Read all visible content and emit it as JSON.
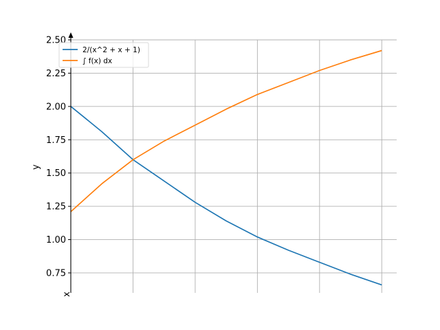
{
  "chart_data": {
    "type": "line",
    "title": "",
    "xlabel": "x",
    "ylabel": "y",
    "xlim": [
      0,
      2.62
    ],
    "ylim": [
      0.6,
      2.5
    ],
    "x_grid": [
      0.5,
      1.0,
      1.5,
      2.0,
      2.5
    ],
    "y_ticks": [
      0.75,
      1.0,
      1.25,
      1.5,
      1.75,
      2.0,
      2.25,
      2.5
    ],
    "y_tick_labels": [
      "0.75",
      "1.00",
      "1.25",
      "1.50",
      "1.75",
      "2.00",
      "2.25",
      "2.50"
    ],
    "grid": true,
    "legend_position": "top-left",
    "series": [
      {
        "name": "2/(x^2 + x + 1)",
        "color": "#1f77b4",
        "x": [
          0,
          0.25,
          0.5,
          0.75,
          1.0,
          1.25,
          1.5,
          1.75,
          2.0,
          2.25,
          2.5
        ],
        "y": [
          2.0,
          1.81,
          1.6,
          1.44,
          1.28,
          1.14,
          1.02,
          0.92,
          0.83,
          0.74,
          0.66
        ]
      },
      {
        "name": "∫ f(x) dx",
        "color": "#ff7f0e",
        "x": [
          0,
          0.25,
          0.5,
          0.75,
          1.0,
          1.25,
          1.5,
          1.75,
          2.0,
          2.25,
          2.5
        ],
        "y": [
          1.21,
          1.42,
          1.6,
          1.74,
          1.86,
          1.98,
          2.09,
          2.18,
          2.27,
          2.35,
          2.42
        ]
      }
    ]
  }
}
